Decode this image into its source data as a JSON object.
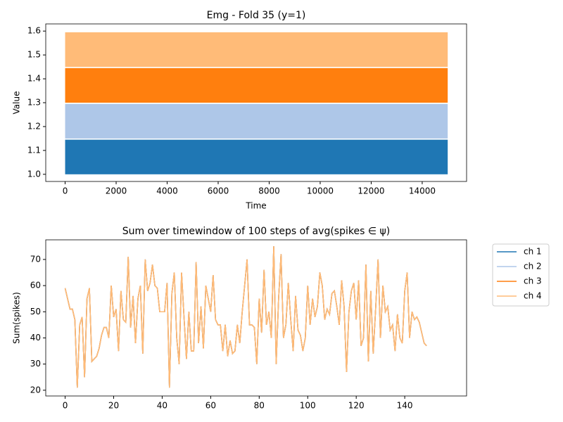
{
  "chart_data": [
    {
      "type": "eventplot",
      "title": "Emg - Fold 35 (y=1)",
      "xlabel": "Time",
      "ylabel": "Value",
      "xlim": [
        -760,
        15740
      ],
      "ylim": [
        0.97,
        1.63
      ],
      "xticks": [
        0,
        2000,
        4000,
        6000,
        8000,
        10000,
        12000,
        14000
      ],
      "yticks": [
        {
          "value": 1,
          "label": "1.0"
        },
        1.1,
        1.2,
        1.3,
        1.4,
        1.5,
        1.6
      ],
      "series": [
        {
          "color": "#1f77b4",
          "x": [
            0,
            15000
          ],
          "y": [
            1.0,
            1.145
          ]
        },
        {
          "color": "#aec7e8",
          "x": [
            0,
            15000
          ],
          "y": [
            1.15,
            1.295
          ]
        },
        {
          "color": "#ff7f0e",
          "x": [
            0,
            15000
          ],
          "y": [
            1.3,
            1.445
          ]
        },
        {
          "color": "#ffbb78",
          "x": [
            0,
            15000
          ],
          "y": [
            1.45,
            1.595
          ]
        }
      ]
    },
    {
      "type": "line",
      "title": "Sum over timewindow of 100 steps of avg(spikes ∈ ψ)",
      "ylabel": "Sum(spikes)",
      "xlim": [
        -8,
        165.5
      ],
      "ylim": [
        17.8,
        77.5
      ],
      "xticks": [
        0,
        20,
        40,
        60,
        80,
        100,
        120,
        140
      ],
      "yticks": [
        20,
        30,
        40,
        50,
        60,
        70
      ],
      "legend": "outside upper right",
      "x": [
        0,
        1,
        2,
        3,
        4,
        5,
        6,
        7,
        8,
        9,
        10,
        11,
        12,
        13,
        14,
        15,
        16,
        17,
        18,
        19,
        20,
        21,
        22,
        23,
        24,
        25,
        26,
        27,
        28,
        29,
        30,
        31,
        32,
        33,
        34,
        35,
        36,
        37,
        38,
        39,
        40,
        41,
        42,
        43,
        44,
        45,
        46,
        47,
        48,
        49,
        50,
        51,
        52,
        53,
        54,
        55,
        56,
        57,
        58,
        59,
        60,
        61,
        62,
        63,
        64,
        65,
        66,
        67,
        68,
        69,
        70,
        71,
        72,
        73,
        74,
        75,
        76,
        77,
        78,
        79,
        80,
        81,
        82,
        83,
        84,
        85,
        86,
        87,
        88,
        89,
        90,
        91,
        92,
        93,
        94,
        95,
        96,
        97,
        98,
        99,
        100,
        101,
        102,
        103,
        104,
        105,
        106,
        107,
        108,
        109,
        110,
        111,
        112,
        113,
        114,
        115,
        116,
        117,
        118,
        119,
        120,
        121,
        122,
        123,
        124,
        125,
        126,
        127,
        128,
        129,
        130,
        131,
        132,
        133,
        134,
        135,
        136,
        137,
        138,
        139,
        140,
        141,
        142,
        143,
        144,
        145,
        146,
        147,
        148,
        149
      ],
      "series": [
        {
          "name": "ch 1",
          "color": "#1f77b4",
          "values": [
            59,
            55,
            51,
            51,
            47,
            21,
            45,
            48,
            25,
            55,
            59,
            31,
            32,
            33,
            36,
            41,
            44,
            44,
            40,
            60,
            48,
            51,
            35,
            58,
            47,
            46,
            71,
            44,
            56,
            38,
            55,
            60,
            34,
            70,
            58,
            61,
            68,
            60,
            59,
            50,
            50,
            50,
            61,
            21,
            57,
            65,
            40,
            30,
            65,
            48,
            32,
            50,
            35,
            35,
            69,
            38,
            52,
            36,
            60,
            55,
            50,
            64,
            47,
            45,
            45,
            35,
            45,
            33,
            39,
            34,
            35,
            45,
            38,
            50,
            60,
            70,
            45,
            45,
            44,
            30,
            55,
            42,
            66,
            45,
            50,
            40,
            75,
            30,
            55,
            72,
            40,
            45,
            61,
            47,
            35,
            56,
            43,
            41,
            35,
            40,
            60,
            45,
            55,
            48,
            52,
            65,
            60,
            47,
            51,
            49,
            57,
            58,
            52,
            45,
            62,
            52,
            27,
            50,
            58,
            61,
            47,
            62,
            37,
            40,
            68,
            31,
            58,
            34,
            51,
            70,
            40,
            60,
            50,
            52,
            43,
            45,
            35,
            49,
            40,
            38,
            58,
            65,
            40,
            50,
            47,
            48,
            46,
            42,
            38,
            37
          ]
        },
        {
          "name": "ch 2",
          "color": "#aec7e8",
          "values": [
            59,
            55,
            51,
            51,
            47,
            21,
            45,
            48,
            25,
            55,
            59,
            31,
            32,
            33,
            36,
            41,
            44,
            44,
            40,
            60,
            48,
            51,
            35,
            58,
            47,
            46,
            71,
            44,
            56,
            38,
            55,
            60,
            34,
            70,
            58,
            61,
            68,
            60,
            59,
            50,
            50,
            50,
            61,
            21,
            57,
            65,
            40,
            30,
            65,
            48,
            32,
            50,
            35,
            35,
            69,
            38,
            52,
            36,
            60,
            55,
            50,
            64,
            47,
            45,
            45,
            35,
            45,
            33,
            39,
            34,
            35,
            45,
            38,
            50,
            60,
            70,
            45,
            45,
            44,
            30,
            55,
            42,
            66,
            45,
            50,
            40,
            75,
            30,
            55,
            72,
            40,
            45,
            61,
            47,
            35,
            56,
            43,
            41,
            35,
            40,
            60,
            45,
            55,
            48,
            52,
            65,
            60,
            47,
            51,
            49,
            57,
            58,
            52,
            45,
            62,
            52,
            27,
            50,
            58,
            61,
            47,
            62,
            37,
            40,
            68,
            31,
            58,
            34,
            51,
            70,
            40,
            60,
            50,
            52,
            43,
            45,
            35,
            49,
            40,
            38,
            58,
            65,
            40,
            50,
            47,
            48,
            46,
            42,
            38,
            37
          ]
        },
        {
          "name": "ch 3",
          "color": "#ff7f0e",
          "values": [
            59,
            55,
            51,
            51,
            47,
            21,
            45,
            48,
            25,
            55,
            59,
            31,
            32,
            33,
            36,
            41,
            44,
            44,
            40,
            60,
            48,
            51,
            35,
            58,
            47,
            46,
            71,
            44,
            56,
            38,
            55,
            60,
            34,
            70,
            58,
            61,
            68,
            60,
            59,
            50,
            50,
            50,
            61,
            21,
            57,
            65,
            40,
            30,
            65,
            48,
            32,
            50,
            35,
            35,
            69,
            38,
            52,
            36,
            60,
            55,
            50,
            64,
            47,
            45,
            45,
            35,
            45,
            33,
            39,
            34,
            35,
            45,
            38,
            50,
            60,
            70,
            45,
            45,
            44,
            30,
            55,
            42,
            66,
            45,
            50,
            40,
            75,
            30,
            55,
            72,
            40,
            45,
            61,
            47,
            35,
            56,
            43,
            41,
            35,
            40,
            60,
            45,
            55,
            48,
            52,
            65,
            60,
            47,
            51,
            49,
            57,
            58,
            52,
            45,
            62,
            52,
            27,
            50,
            58,
            61,
            47,
            62,
            37,
            40,
            68,
            31,
            58,
            34,
            51,
            70,
            40,
            60,
            50,
            52,
            43,
            45,
            35,
            49,
            40,
            38,
            58,
            65,
            40,
            50,
            47,
            48,
            46,
            42,
            38,
            37
          ]
        },
        {
          "name": "ch 4",
          "color": "#ffbb78",
          "values": [
            59,
            55,
            51,
            51,
            47,
            21,
            45,
            48,
            25,
            55,
            59,
            31,
            32,
            33,
            36,
            41,
            44,
            44,
            40,
            60,
            48,
            51,
            35,
            58,
            47,
            46,
            71,
            44,
            56,
            38,
            55,
            60,
            34,
            70,
            58,
            61,
            68,
            60,
            59,
            50,
            50,
            50,
            61,
            21,
            57,
            65,
            40,
            30,
            65,
            48,
            32,
            50,
            35,
            35,
            69,
            38,
            52,
            36,
            60,
            55,
            50,
            64,
            47,
            45,
            45,
            35,
            45,
            33,
            39,
            34,
            35,
            45,
            38,
            50,
            60,
            70,
            45,
            45,
            44,
            30,
            55,
            42,
            66,
            45,
            50,
            40,
            75,
            30,
            55,
            72,
            40,
            45,
            61,
            47,
            35,
            56,
            43,
            41,
            35,
            40,
            60,
            45,
            55,
            48,
            52,
            65,
            60,
            47,
            51,
            49,
            57,
            58,
            52,
            45,
            62,
            52,
            27,
            50,
            58,
            61,
            47,
            62,
            37,
            40,
            68,
            31,
            58,
            34,
            51,
            70,
            40,
            60,
            50,
            52,
            43,
            45,
            35,
            49,
            40,
            38,
            58,
            65,
            40,
            50,
            47,
            48,
            46,
            42,
            38,
            37
          ]
        }
      ]
    }
  ]
}
